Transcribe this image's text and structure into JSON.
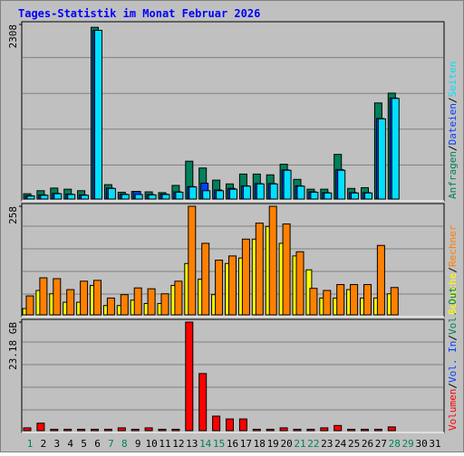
{
  "chart_data": {
    "type": "bar",
    "title": "Tages-Statistik im Monat Februar 2026",
    "categories": [
      "1",
      "2",
      "3",
      "4",
      "5",
      "6",
      "7",
      "8",
      "9",
      "10",
      "11",
      "12",
      "13",
      "14",
      "15",
      "16",
      "17",
      "18",
      "19",
      "20",
      "21",
      "22",
      "23",
      "24",
      "25",
      "26",
      "27",
      "28",
      "29",
      "30",
      "31"
    ],
    "category_colors": [
      "#00805c",
      "#000000",
      "#000000",
      "#000000",
      "#000000",
      "#000000",
      "#00805c",
      "#00805c",
      "#000000",
      "#000000",
      "#000000",
      "#000000",
      "#000000",
      "#00805c",
      "#00805c",
      "#000000",
      "#000000",
      "#000000",
      "#000000",
      "#000000",
      "#00805c",
      "#00805c",
      "#000000",
      "#000000",
      "#000000",
      "#000000",
      "#000000",
      "#00805c",
      "#00805c",
      "#000000",
      "#000000"
    ],
    "legend_separator": "/",
    "panels": [
      {
        "ylim": [
          0,
          2308
        ],
        "yticks": [
          2308
        ],
        "series": [
          {
            "name": "Anfragen",
            "color": "#00805c",
            "values": [
              70,
              110,
              145,
              130,
              110,
              2270,
              190,
              90,
              100,
              95,
              85,
              180,
              500,
              410,
              250,
              200,
              330,
              330,
              320,
              460,
              260,
              130,
              130,
              590,
              140,
              150,
              1270,
              1400,
              null,
              null,
              null
            ]
          },
          {
            "name": "Dateien",
            "color": "#0040ff",
            "values": [
              45,
              55,
              75,
              65,
              55,
              2230,
              145,
              65,
              100,
              60,
              65,
              95,
              165,
              210,
              120,
              140,
              175,
              205,
              205,
              385,
              175,
              95,
              85,
              390,
              85,
              85,
              1065,
              1335,
              null,
              null,
              null
            ]
          },
          {
            "name": "Seiten",
            "color": "#00e0ff",
            "values": [
              40,
              50,
              70,
              60,
              50,
              2230,
              140,
              60,
              60,
              55,
              60,
              90,
              160,
              110,
              110,
              130,
              170,
              200,
              200,
              380,
              170,
              90,
              80,
              380,
              80,
              80,
              1060,
              1330,
              null,
              null,
              null
            ]
          }
        ]
      },
      {
        "ylim": [
          0,
          258
        ],
        "yticks": [
          258
        ],
        "series": [
          {
            "name": "Besuche",
            "color": "#ffff00",
            "values": [
              15,
              58,
              50,
              30,
              30,
              70,
              22,
              22,
              35,
              27,
              27,
              70,
              122,
              85,
              48,
              122,
              135,
              180,
              210,
              170,
              140,
              107,
              40,
              40,
              60,
              40,
              40,
              50,
              null,
              null,
              null
            ]
          },
          {
            "name": "Rechner",
            "color": "#ff8000",
            "values": [
              45,
              88,
              86,
              60,
              80,
              82,
              40,
              48,
              64,
              62,
              50,
              80,
              258,
              170,
              130,
              140,
              180,
              218,
              258,
              216,
              150,
              63,
              58,
              72,
              72,
              72,
              165,
              65,
              null,
              null,
              null
            ]
          }
        ]
      },
      {
        "ylim": [
          0,
          23.18
        ],
        "yticks": [
          {
            "value": 23.18,
            "label": "23.18 GB"
          }
        ],
        "series": [
          {
            "name": "Volumen",
            "color": "#ff0000",
            "values": [
              0.6,
              1.6,
              0.3,
              0.3,
              0.3,
              0.3,
              0.3,
              0.6,
              0.3,
              0.6,
              0.3,
              0.3,
              23.18,
              12.2,
              3.1,
              2.5,
              2.5,
              0.3,
              0.3,
              0.6,
              0.3,
              0.3,
              0.6,
              1.1,
              0.3,
              0.3,
              0.3,
              0.8,
              null,
              null,
              null
            ]
          },
          {
            "name": "Vol. In",
            "color": "#0040ff"
          },
          {
            "name": "Vol. Out",
            "color": "#00805c"
          }
        ]
      }
    ]
  }
}
